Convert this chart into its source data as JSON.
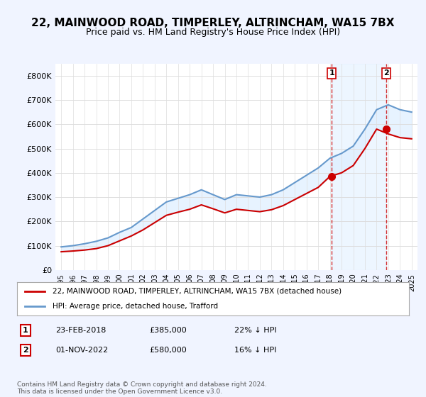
{
  "title": "22, MAINWOOD ROAD, TIMPERLEY, ALTRINCHAM, WA15 7BX",
  "subtitle": "Price paid vs. HM Land Registry's House Price Index (HPI)",
  "title_fontsize": 11,
  "subtitle_fontsize": 9,
  "bg_color": "#f0f4ff",
  "plot_bg_color": "#ffffff",
  "red_line_color": "#cc0000",
  "blue_line_color": "#6699cc",
  "highlight_bg": "#ddeeff",
  "sale1": {
    "date_num": 2018.15,
    "price": 385000,
    "label": "1",
    "pct": "22%"
  },
  "sale2": {
    "date_num": 2022.84,
    "price": 580000,
    "label": "2",
    "pct": "16%"
  },
  "annotation1_text": "1",
  "annotation2_text": "2",
  "legend_line1": "22, MAINWOOD ROAD, TIMPERLEY, ALTRINCHAM, WA15 7BX (detached house)",
  "legend_line2": "HPI: Average price, detached house, Trafford",
  "table_row1": [
    "1",
    "23-FEB-2018",
    "£385,000",
    "22% ↓ HPI"
  ],
  "table_row2": [
    "2",
    "01-NOV-2022",
    "£580,000",
    "16% ↓ HPI"
  ],
  "footer": "Contains HM Land Registry data © Crown copyright and database right 2024.\nThis data is licensed under the Open Government Licence v3.0.",
  "ylim": [
    0,
    850000
  ],
  "yticks": [
    0,
    100000,
    200000,
    300000,
    400000,
    500000,
    600000,
    700000,
    800000
  ],
  "ytick_labels": [
    "£0",
    "£100K",
    "£200K",
    "£300K",
    "£400K",
    "£500K",
    "£600K",
    "£700K",
    "£800K"
  ],
  "hpi_years": [
    1995,
    1996,
    1997,
    1998,
    1999,
    2000,
    2001,
    2002,
    2003,
    2004,
    2005,
    2006,
    2007,
    2008,
    2009,
    2010,
    2011,
    2012,
    2013,
    2014,
    2015,
    2016,
    2017,
    2018,
    2019,
    2020,
    2021,
    2022,
    2023,
    2024,
    2025
  ],
  "hpi_values": [
    95000,
    100000,
    108000,
    118000,
    132000,
    155000,
    175000,
    210000,
    245000,
    280000,
    295000,
    310000,
    330000,
    310000,
    290000,
    310000,
    305000,
    300000,
    310000,
    330000,
    360000,
    390000,
    420000,
    460000,
    480000,
    510000,
    580000,
    660000,
    680000,
    660000,
    650000
  ],
  "price_years": [
    1995,
    1996,
    1997,
    1998,
    1999,
    2000,
    2001,
    2002,
    2003,
    2004,
    2005,
    2006,
    2007,
    2008,
    2009,
    2010,
    2011,
    2012,
    2013,
    2014,
    2015,
    2016,
    2017,
    2018,
    2019,
    2020,
    2021,
    2022,
    2023,
    2024,
    2025
  ],
  "price_values": [
    75000,
    78000,
    82000,
    88000,
    100000,
    120000,
    140000,
    165000,
    195000,
    225000,
    238000,
    250000,
    268000,
    252000,
    235000,
    250000,
    245000,
    240000,
    248000,
    265000,
    290000,
    315000,
    340000,
    385000,
    400000,
    430000,
    500000,
    580000,
    560000,
    545000,
    540000
  ]
}
